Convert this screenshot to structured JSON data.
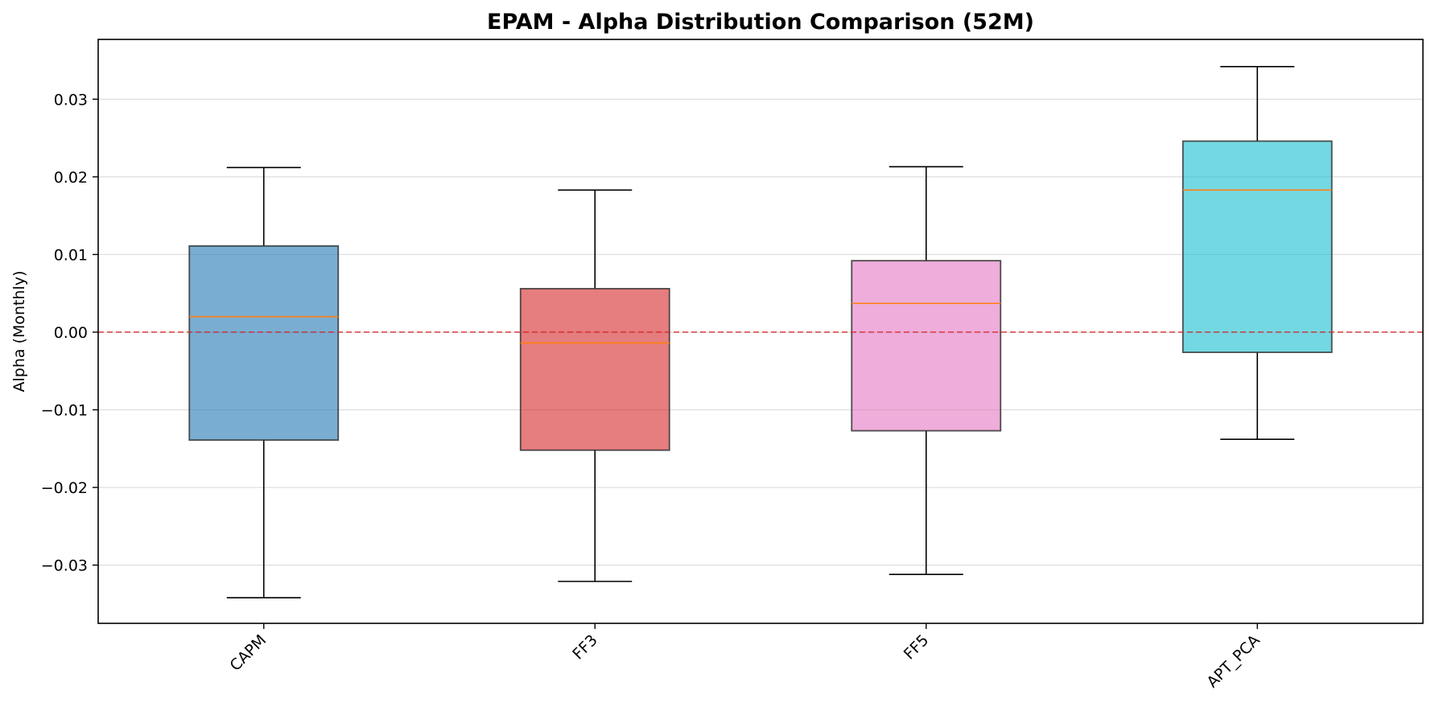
{
  "chart_data": {
    "type": "box",
    "title": "EPAM - Alpha Distribution Comparison (52M)",
    "xlabel": "",
    "ylabel": "Alpha (Monthly)",
    "ylim": [
      -0.0375,
      0.0377
    ],
    "yticks": [
      -0.03,
      -0.02,
      -0.01,
      0.0,
      0.01,
      0.02,
      0.03
    ],
    "ytick_labels": [
      "−0.03",
      "−0.02",
      "−0.01",
      "0.00",
      "0.01",
      "0.02",
      "0.03"
    ],
    "grid": "y",
    "reference_line": {
      "y": 0.0,
      "color": "#d62728",
      "style": "dashed"
    },
    "categories": [
      "CAPM",
      "FF3",
      "FF5",
      "APT_PCA"
    ],
    "series": [
      {
        "whisker_low": -0.0342,
        "q1": -0.0139,
        "median": 0.002,
        "q3": 0.0111,
        "whisker_high": 0.0212,
        "color": "#1f77b4"
      },
      {
        "whisker_low": -0.0321,
        "q1": -0.0152,
        "median": -0.0014,
        "q3": 0.0056,
        "whisker_high": 0.0183,
        "color": "#d62728"
      },
      {
        "whisker_low": -0.0312,
        "q1": -0.0127,
        "median": 0.0037,
        "q3": 0.0092,
        "whisker_high": 0.0213,
        "color": "#e377c2"
      },
      {
        "whisker_low": -0.0138,
        "q1": -0.0026,
        "median": 0.0183,
        "q3": 0.0246,
        "whisker_high": 0.0342,
        "color": "#17becf"
      }
    ],
    "median_color": "#ff7f0e",
    "box_alpha": 0.6
  }
}
